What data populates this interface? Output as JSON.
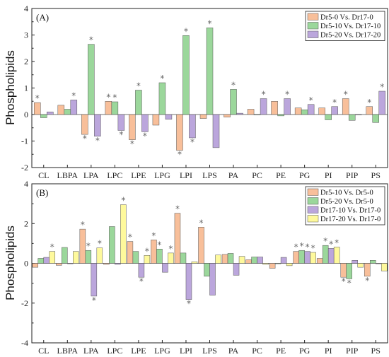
{
  "figure": {
    "shared_ylabel": "Phospholipids"
  },
  "chart_data": [
    {
      "type": "bar",
      "panel_label": "(A)",
      "ylabel": "Phospholipids",
      "ylim": [
        -2,
        4
      ],
      "yticks": [
        "-2",
        "-1",
        "0",
        "1",
        "2",
        "3",
        "4"
      ],
      "grid": false,
      "legend_position": "top-right",
      "categories": [
        "CL",
        "LBPA",
        "LPA",
        "LPC",
        "LPE",
        "LPG",
        "LPI",
        "LPS",
        "PA",
        "PC",
        "PE",
        "PG",
        "PI",
        "PIP",
        "PS"
      ],
      "series": [
        {
          "name": "Dr5-0 Vs. Dr17-0",
          "color": "#F8BF9A",
          "values": [
            0.45,
            0.35,
            -0.75,
            0.5,
            -0.95,
            -0.4,
            -1.35,
            -0.15,
            -0.1,
            0.2,
            0.5,
            0.25,
            0.25,
            0.6,
            0.3
          ],
          "sig": [
            true,
            false,
            true,
            true,
            true,
            false,
            true,
            false,
            false,
            false,
            false,
            false,
            false,
            true,
            true
          ]
        },
        {
          "name": "Dr5-10 Vs. Dr17-10",
          "color": "#9BD79B",
          "values": [
            -0.12,
            0.2,
            2.65,
            0.48,
            0.92,
            1.2,
            2.98,
            3.27,
            0.95,
            0.0,
            -0.05,
            0.18,
            -0.2,
            -0.22,
            -0.3
          ],
          "sig": [
            false,
            false,
            true,
            true,
            true,
            true,
            true,
            true,
            true,
            false,
            false,
            false,
            false,
            false,
            false
          ]
        },
        {
          "name": "Dr5-20 Vs. Dr17-20",
          "color": "#BBA6DC",
          "values": [
            0.1,
            0.55,
            -0.82,
            -0.6,
            -0.65,
            -0.18,
            -0.88,
            -1.25,
            0.05,
            0.6,
            0.6,
            0.38,
            0.3,
            0.0,
            0.88
          ],
          "sig": [
            false,
            true,
            true,
            true,
            true,
            false,
            true,
            false,
            false,
            true,
            true,
            true,
            true,
            false,
            true
          ]
        }
      ]
    },
    {
      "type": "bar",
      "panel_label": "(B)",
      "ylabel": "Phospholipids",
      "ylim": [
        -4,
        4
      ],
      "yticks": [
        "-4",
        "-2",
        "0",
        "2",
        "4"
      ],
      "grid": false,
      "legend_position": "top-right",
      "categories": [
        "CL",
        "LBPA",
        "LPA",
        "LPC",
        "LPE",
        "LPG",
        "LPI",
        "LPS",
        "PA",
        "PC",
        "PE",
        "PG",
        "PI",
        "PIP",
        "PS"
      ],
      "series": [
        {
          "name": "Dr5-10 Vs. Dr5-0",
          "color": "#F8BF9A",
          "values": [
            -0.2,
            -0.1,
            1.72,
            -0.05,
            1.1,
            1.18,
            2.52,
            1.82,
            0.45,
            0.18,
            -0.25,
            0.6,
            0.25,
            -0.7,
            -0.65
          ],
          "sig": [
            false,
            false,
            true,
            false,
            true,
            true,
            true,
            true,
            false,
            false,
            false,
            true,
            false,
            true,
            true
          ]
        },
        {
          "name": "Dr5-20 Vs. Dr5-0",
          "color": "#9BD79B",
          "values": [
            0.25,
            0.8,
            0.65,
            1.85,
            0.6,
            0.72,
            0.52,
            -0.65,
            0.5,
            0.32,
            0.0,
            0.65,
            0.9,
            -0.78,
            0.15
          ],
          "sig": [
            false,
            false,
            true,
            false,
            false,
            true,
            false,
            false,
            false,
            false,
            false,
            true,
            true,
            true,
            false
          ]
        },
        {
          "name": "Dr17-10 Vs. Dr17-0",
          "color": "#BBA6DC",
          "values": [
            0.3,
            0.0,
            -1.65,
            -0.05,
            -0.7,
            -0.45,
            -1.82,
            -1.6,
            -0.6,
            0.32,
            0.3,
            0.6,
            0.75,
            0.15,
            0.0
          ],
          "sig": [
            false,
            false,
            true,
            false,
            true,
            false,
            true,
            false,
            false,
            false,
            false,
            true,
            true,
            false,
            false
          ]
        },
        {
          "name": "Dr17-20 Vs. Dr17-0",
          "color": "#FEF99C",
          "values": [
            0.6,
            0.6,
            0.78,
            2.95,
            0.4,
            0.52,
            0.08,
            0.42,
            0.35,
            -0.05,
            -0.12,
            0.55,
            0.82,
            -0.2,
            -0.38
          ],
          "sig": [
            true,
            false,
            true,
            true,
            true,
            true,
            false,
            false,
            false,
            false,
            false,
            true,
            true,
            false,
            false
          ]
        }
      ]
    }
  ]
}
